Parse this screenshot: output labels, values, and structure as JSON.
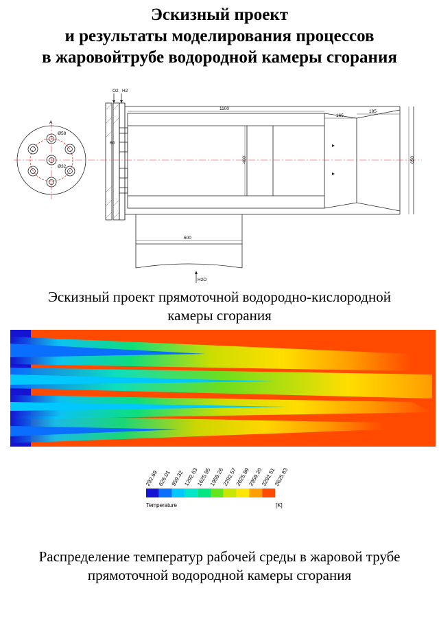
{
  "title": {
    "line1": "Эскизный проект",
    "line2": "и результаты моделирования процессов",
    "line3": "в жаровойтрубе водородной камеры сгорания"
  },
  "drawing": {
    "labels": {
      "o2": "O2",
      "h2": "H2",
      "h2o": "H2O",
      "dim_1100": "1100",
      "dim_165": "165",
      "dim_195": "195",
      "dim_60": "60",
      "dim_400": "400",
      "dim_650": "650",
      "dim_600": "600",
      "dim_d58": "Ø58",
      "dim_d32": "Ø32",
      "section_a": "А"
    }
  },
  "caption1": {
    "line1": "Эскизный проект прямоточной водородно-кислородной",
    "line2": "камеры сгорания"
  },
  "legend": {
    "label": "Temperature",
    "unit": "[K]",
    "ticks": [
      "292.69",
      "626.01",
      "959.32",
      "1292.63",
      "1625.95",
      "1959.26",
      "2292.57",
      "2625.89",
      "2959.20",
      "3292.51",
      "3625.83"
    ],
    "colors": [
      "#1414d2",
      "#0a6eff",
      "#00c8ff",
      "#00e6c8",
      "#00e682",
      "#64e61e",
      "#c8e600",
      "#ffe600",
      "#ffa000",
      "#ff4a00"
    ]
  },
  "caption2": {
    "line1": "Распределение температур рабочей среды в жаровой трубе",
    "line2": "прямоточной водородной камеры сгорания"
  }
}
